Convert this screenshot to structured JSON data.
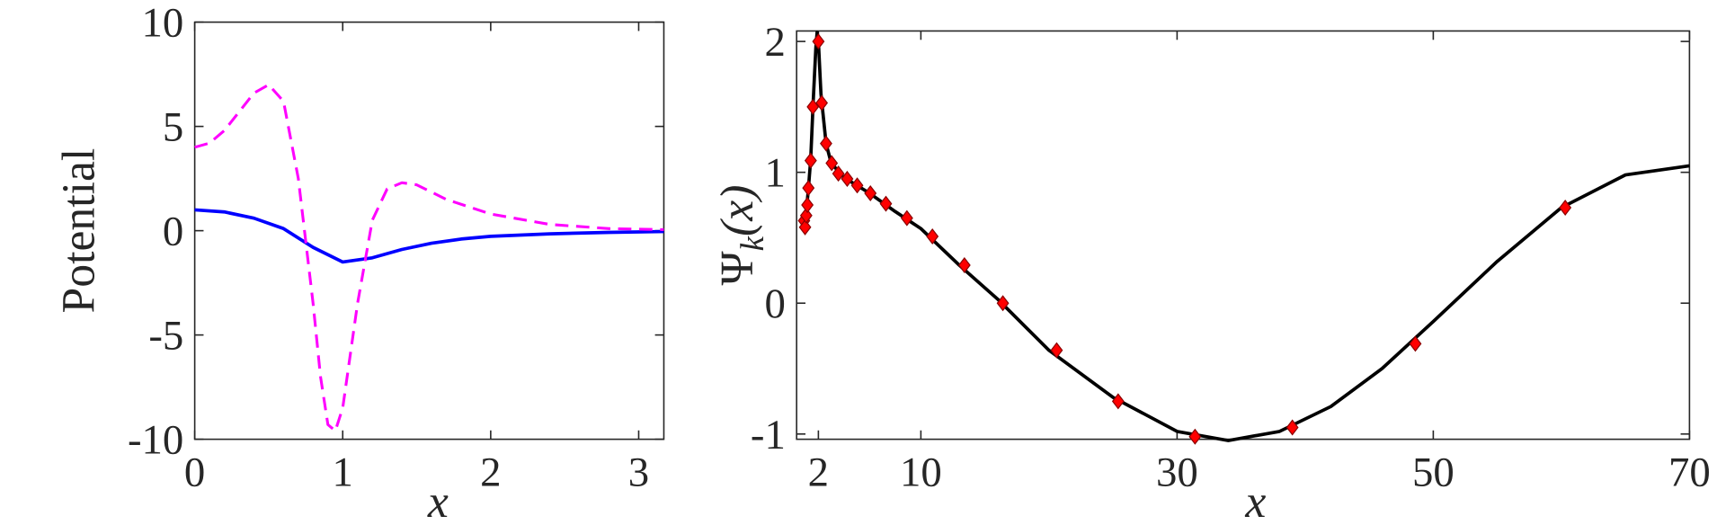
{
  "chart_data": [
    {
      "type": "line",
      "ylabel": "Potential",
      "xlabel": "x",
      "xlim": [
        0,
        3.17
      ],
      "ylim": [
        -10,
        10
      ],
      "xticks": [
        0,
        1,
        2,
        3
      ],
      "yticks": [
        -10,
        -5,
        0,
        5,
        10
      ],
      "series": [
        {
          "color": "#0000ff",
          "dash": "solid",
          "x": [
            0,
            0.2,
            0.4,
            0.6,
            0.8,
            1.0,
            1.2,
            1.4,
            1.6,
            1.8,
            2.0,
            2.4,
            2.8,
            3.17
          ],
          "values": [
            1,
            0.9,
            0.6,
            0.1,
            -0.8,
            -1.5,
            -1.3,
            -0.9,
            -0.6,
            -0.4,
            -0.27,
            -0.15,
            -0.08,
            -0.04
          ]
        },
        {
          "color": "#ff00ff",
          "dash": "dashed",
          "x": [
            0,
            0.1,
            0.2,
            0.3,
            0.4,
            0.5,
            0.6,
            0.7,
            0.8,
            0.85,
            0.9,
            0.95,
            1.0,
            1.1,
            1.2,
            1.3,
            1.4,
            1.5,
            1.7,
            2.0,
            2.4,
            2.8,
            3.17
          ],
          "values": [
            4,
            4.2,
            4.8,
            5.7,
            6.6,
            7,
            6.2,
            2.5,
            -3.5,
            -7,
            -9.3,
            -9.6,
            -8.5,
            -3.5,
            0.5,
            2.0,
            2.3,
            2.2,
            1.5,
            0.8,
            0.3,
            0.1,
            0.05
          ]
        }
      ]
    },
    {
      "type": "line",
      "ylabel": "Ψ",
      "ylabel_sub": "k",
      "ylabel_tail": "(x)",
      "xlabel": "x",
      "xlim": [
        0.3,
        70
      ],
      "ylim": [
        -1.04,
        2.08
      ],
      "xticks": [
        2,
        10,
        30,
        50,
        70
      ],
      "yticks": [
        -1,
        0,
        1,
        2
      ],
      "series": [
        {
          "color": "#000000",
          "dash": "solid",
          "x": [
            0.85,
            1.0,
            1.2,
            1.4,
            1.6,
            1.8,
            1.9,
            2.0,
            2.2,
            2.6,
            3.0,
            4,
            5,
            6,
            8,
            10,
            13,
            16,
            20,
            25,
            30,
            34,
            38,
            42,
            46,
            50,
            55,
            60,
            65,
            70
          ],
          "values": [
            0.58,
            0.65,
            0.85,
            1.1,
            1.55,
            1.95,
            2.07,
            2.0,
            1.6,
            1.22,
            1.07,
            0.96,
            0.9,
            0.84,
            0.7,
            0.57,
            0.29,
            0.03,
            -0.36,
            -0.72,
            -0.98,
            -1.05,
            -0.98,
            -0.79,
            -0.5,
            -0.14,
            0.32,
            0.73,
            0.98,
            1.05
          ]
        },
        {
          "color": "#ff0000",
          "marker": "diamond",
          "x": [
            0.88,
            0.96,
            1.05,
            1.14,
            1.22,
            1.4,
            1.57,
            2.0,
            2.26,
            2.6,
            3.04,
            3.56,
            4.25,
            5.03,
            6.06,
            7.27,
            8.91,
            10.9,
            13.4,
            16.4,
            20.6,
            25.4,
            31.4,
            39.0,
            48.6,
            60.3
          ],
          "values": [
            0.63,
            0.58,
            0.67,
            0.75,
            0.88,
            1.09,
            1.5,
            2.0,
            1.53,
            1.22,
            1.07,
            0.99,
            0.95,
            0.9,
            0.84,
            0.76,
            0.65,
            0.51,
            0.29,
            0.0,
            -0.36,
            -0.75,
            -1.02,
            -0.95,
            -0.31,
            0.73
          ]
        }
      ]
    }
  ]
}
